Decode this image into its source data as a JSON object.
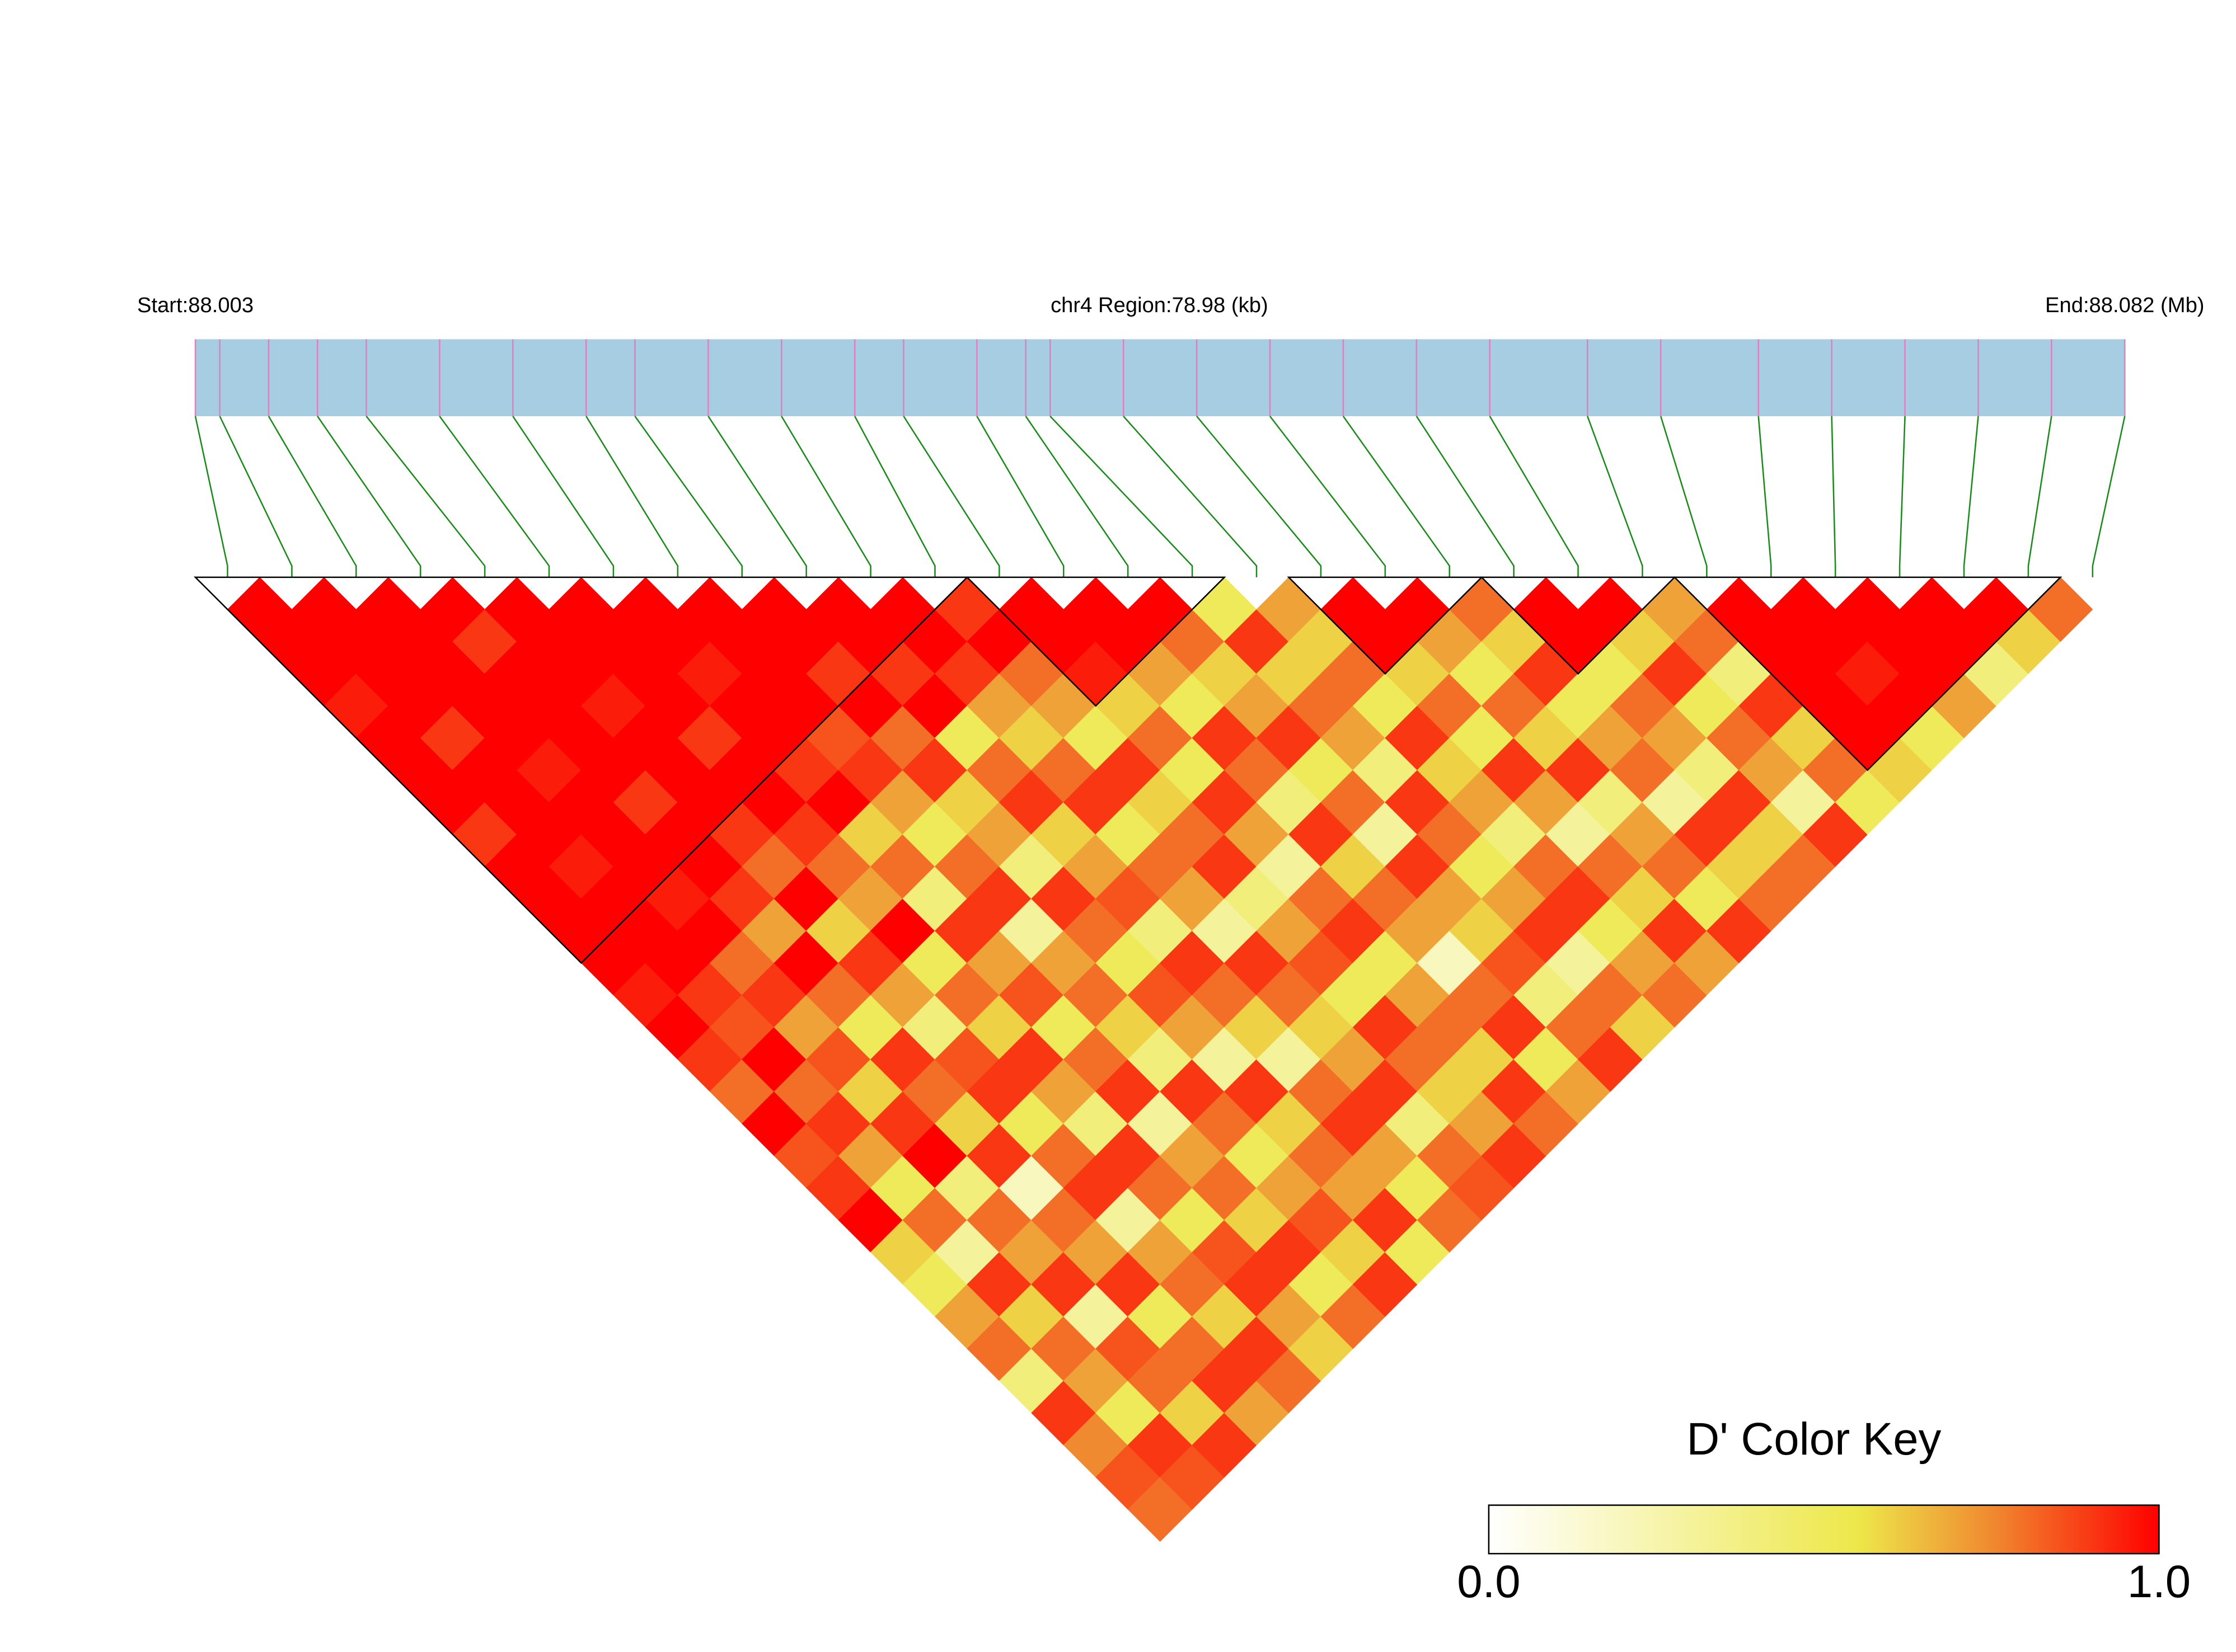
{
  "chart_data": {
    "type": "ld_heatmap",
    "left_label": "Start:88.003",
    "center_label": "chr4 Region:78.98 (kb)",
    "right_label": "End:88.082 (Mb)",
    "xlim": [
      88.003,
      88.082
    ],
    "positions": [
      88.003,
      88.004,
      88.006,
      88.008,
      88.01,
      88.013,
      88.016,
      88.019,
      88.021,
      88.024,
      88.027,
      88.03,
      88.032,
      88.035,
      88.037,
      88.038,
      88.041,
      88.044,
      88.047,
      88.05,
      88.053,
      88.056,
      88.06,
      88.063,
      88.067,
      88.07,
      88.073,
      88.076,
      88.079,
      88.082
    ],
    "bar_color": "#a6cde1",
    "marker_color": "#e080c0",
    "link_color": "#1a8a1a",
    "block_color": "#000000",
    "blocks": [
      [
        0,
        11
      ],
      [
        12,
        15
      ],
      [
        17,
        19
      ],
      [
        20,
        22
      ],
      [
        23,
        28
      ]
    ],
    "dprime": [
      [
        1,
        1,
        1,
        0.95,
        1,
        1,
        1,
        0.9,
        1,
        1,
        1,
        1,
        0.95,
        1,
        0.9,
        0.8,
        1,
        0.85,
        0.9,
        1,
        0.6,
        0.5,
        0.7,
        0.8,
        0.4,
        0.9,
        0.75,
        0.85,
        0.8
      ],
      [
        1,
        1,
        1,
        1,
        0.9,
        1,
        1,
        1,
        0.95,
        1,
        1,
        1,
        0.9,
        0.85,
        1,
        0.8,
        0.9,
        0.7,
        0.5,
        0.8,
        0.3,
        0.9,
        0.6,
        0.8,
        0.7,
        0.5,
        0.9,
        0.85
      ],
      [
        1,
        1,
        1,
        1,
        1,
        0.95,
        1,
        1,
        1,
        0.95,
        1,
        0.8,
        0.9,
        0.7,
        0.85,
        0.6,
        0.9,
        1,
        0.4,
        0.8,
        0.7,
        0.9,
        0.3,
        0.85,
        0.8,
        0.6,
        0.9
      ],
      [
        1,
        0.9,
        1,
        1,
        1,
        1,
        0.9,
        1,
        1,
        0.9,
        0.7,
        1,
        0.8,
        0.5,
        0.9,
        0.8,
        0.6,
        0.9,
        0.2,
        0.8,
        0.7,
        0.9,
        0.5,
        0.8,
        0.9,
        0.7
      ],
      [
        1,
        1,
        1,
        0.95,
        1,
        1,
        1,
        0.9,
        0.8,
        1,
        0.6,
        0.9,
        0.7,
        0.4,
        0.85,
        0.9,
        0.5,
        0.8,
        0.9,
        0.3,
        0.7,
        0.8,
        0.6,
        0.9,
        0.8
      ],
      [
        1,
        1,
        1,
        1,
        0.9,
        1,
        1,
        0.9,
        0.8,
        0.7,
        1,
        0.5,
        0.8,
        0.6,
        0.9,
        0.7,
        0.4,
        0.9,
        0.8,
        0.5,
        0.85,
        0.9,
        0.7,
        0.6
      ],
      [
        1,
        1,
        0.95,
        1,
        1,
        0.9,
        1,
        0.6,
        0.8,
        0.4,
        0.9,
        0.7,
        0.85,
        0.5,
        0.8,
        0.9,
        0.3,
        0.7,
        0.8,
        0.6,
        0.9,
        0.5,
        0.8
      ],
      [
        1,
        1,
        1,
        1,
        0.85,
        0.9,
        0.7,
        0.5,
        0.8,
        0.9,
        0.3,
        0.7,
        0.8,
        0.6,
        0.4,
        0.9,
        0.8,
        0.5,
        0.7,
        0.85,
        0.6,
        0.9
      ],
      [
        1,
        1,
        0.9,
        1,
        0.8,
        0.9,
        0.6,
        0.7,
        0.4,
        0.9,
        0.8,
        0.5,
        0.85,
        0.7,
        0.3,
        0.9,
        0.6,
        0.8,
        0.7,
        0.9,
        0.5
      ],
      [
        1,
        1,
        0.9,
        1,
        0.5,
        0.8,
        0.9,
        0.6,
        0.7,
        0.85,
        0.4,
        0.9,
        0.8,
        0.6,
        0.3,
        0.8,
        0.9,
        0.7,
        0.5,
        0.8
      ],
      [
        1,
        1,
        0.9,
        0.7,
        0.6,
        0.8,
        0.9,
        0.5,
        0.8,
        0.7,
        0.3,
        0.9,
        0.8,
        0.6,
        0.7,
        0.9,
        0.4,
        0.8,
        0.85
      ],
      [
        0.9,
        1,
        0.8,
        0.7,
        0.5,
        0.9,
        0.6,
        0.8,
        0.9,
        0.4,
        0.7,
        0.85,
        0.5,
        0.9,
        0.8,
        0.6,
        0.7,
        0.9
      ],
      [
        1,
        1,
        0.95,
        0.6,
        0.8,
        0.5,
        0.9,
        0.7,
        0.3,
        0.8,
        0.9,
        0.5,
        0.7,
        0.8,
        0.6,
        0.9,
        0.8
      ],
      [
        1,
        1,
        0.7,
        0.5,
        0.9,
        0.8,
        0.4,
        0.9,
        0.6,
        0.8,
        0.7,
        0.2,
        0.8,
        0.9,
        0.5,
        0.7
      ],
      [
        1,
        0.8,
        0.6,
        0.7,
        0.9,
        0.5,
        0.8,
        0.3,
        0.9,
        0.7,
        0.6,
        0.85,
        0.4,
        0.8,
        0.9
      ],
      [
        0.5,
        0.9,
        0.6,
        0.8,
        0.7,
        0.4,
        0.9,
        0.8,
        0.5,
        0.7,
        0.9,
        0.3,
        0.8,
        0.6
      ],
      [
        0.7,
        0.6,
        0.8,
        0.5,
        0.9,
        0.6,
        0.7,
        0.4,
        0.8,
        0.9,
        0.5,
        0.7,
        0.8
      ],
      [
        1,
        1,
        0.6,
        0.8,
        0.5,
        0.9,
        0.7,
        0.3,
        0.8,
        0.6,
        0.9,
        0.7
      ],
      [
        1,
        0.7,
        0.5,
        0.8,
        0.6,
        0.9,
        0.4,
        0.7,
        0.8,
        0.5,
        0.9
      ],
      [
        0.8,
        0.6,
        0.9,
        0.5,
        0.7,
        0.8,
        0.3,
        0.9,
        0.6,
        0.8
      ],
      [
        1,
        1,
        0.5,
        0.8,
        0.7,
        0.4,
        0.9,
        0.6,
        0.8
      ],
      [
        1,
        0.6,
        0.9,
        0.5,
        0.8,
        0.7,
        0.3,
        0.9
      ],
      [
        0.7,
        0.8,
        0.4,
        0.9,
        0.6,
        0.8,
        0.5
      ],
      [
        1,
        1,
        1,
        1,
        1,
        0.6
      ],
      [
        1,
        1,
        0.95,
        1,
        0.5
      ],
      [
        1,
        1,
        1,
        0.7
      ],
      [
        1,
        1,
        0.4
      ],
      [
        1,
        0.6
      ],
      [
        0.8
      ]
    ],
    "key": {
      "title": "D' Color Key",
      "lim": [
        0,
        1
      ],
      "ticks": [
        {
          "value": 0,
          "label": "0.0"
        },
        {
          "value": 1,
          "label": "1.0"
        }
      ],
      "colorscale": [
        [
          0,
          "#ffffff"
        ],
        [
          0.55,
          "#ede84a"
        ],
        [
          0.75,
          "#f08a30"
        ],
        [
          1,
          "#ff0000"
        ]
      ]
    }
  }
}
